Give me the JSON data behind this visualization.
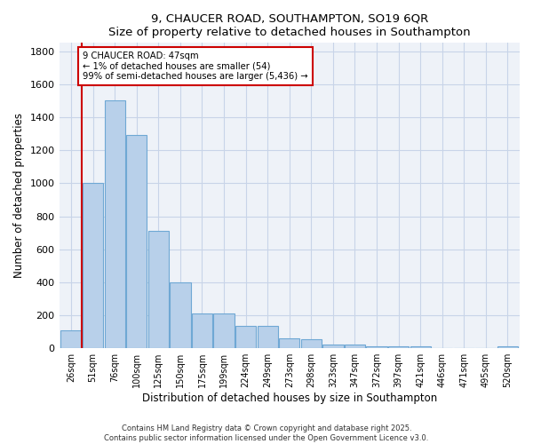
{
  "title_line1": "9, CHAUCER ROAD, SOUTHAMPTON, SO19 6QR",
  "title_line2": "Size of property relative to detached houses in Southampton",
  "xlabel": "Distribution of detached houses by size in Southampton",
  "ylabel": "Number of detached properties",
  "categories": [
    "26sqm",
    "51sqm",
    "76sqm",
    "100sqm",
    "125sqm",
    "150sqm",
    "175sqm",
    "199sqm",
    "224sqm",
    "249sqm",
    "273sqm",
    "298sqm",
    "323sqm",
    "347sqm",
    "372sqm",
    "397sqm",
    "421sqm",
    "446sqm",
    "471sqm",
    "495sqm",
    "520sqm"
  ],
  "values": [
    110,
    1000,
    1500,
    1290,
    710,
    400,
    210,
    210,
    135,
    135,
    60,
    55,
    25,
    25,
    10,
    10,
    10,
    0,
    0,
    0,
    10
  ],
  "bar_color": "#b8d0ea",
  "bar_edgecolor": "#6fa8d4",
  "vline_color": "#cc0000",
  "annotation_text": "9 CHAUCER ROAD: 47sqm\n← 1% of detached houses are smaller (54)\n99% of semi-detached houses are larger (5,436) →",
  "annotation_box_edgecolor": "#cc0000",
  "ylim": [
    0,
    1850
  ],
  "yticks": [
    0,
    200,
    400,
    600,
    800,
    1000,
    1200,
    1400,
    1600,
    1800
  ],
  "grid_color": "#c8d4e8",
  "bg_color": "#eef2f8",
  "footer_line1": "Contains HM Land Registry data © Crown copyright and database right 2025.",
  "footer_line2": "Contains public sector information licensed under the Open Government Licence v3.0."
}
